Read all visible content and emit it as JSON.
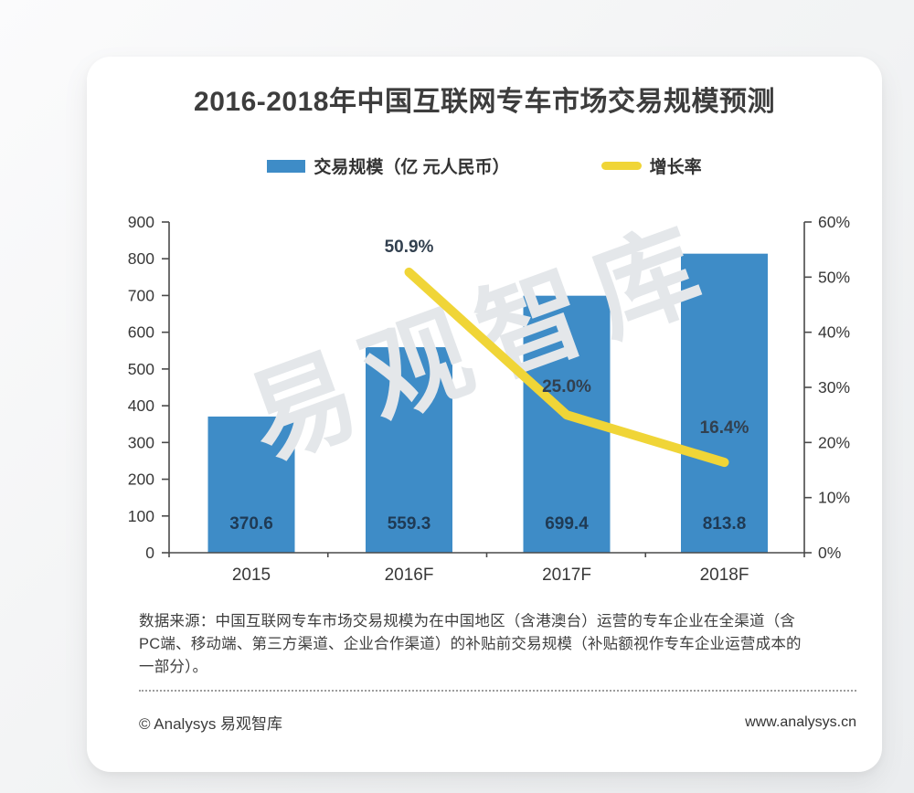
{
  "title": "2016-2018年中国互联网专车市场交易规模预测",
  "legend": {
    "items": [
      {
        "label": "交易规模（亿 元人民币）",
        "swatch": "bar-swatch",
        "color": "#3E8CC7"
      },
      {
        "label": "增长率",
        "swatch": "line-swatch",
        "color": "#F0D537"
      }
    ]
  },
  "chart_data": {
    "type": "bar",
    "subtype": "combo-bar-line",
    "title": "2016-2018年中国互联网专车市场交易规模预测",
    "categories": [
      "2015",
      "2016F",
      "2017F",
      "2018F"
    ],
    "series": [
      {
        "name": "交易规模（亿 元人民币）",
        "type": "bar",
        "axis": "left",
        "color": "#3E8CC7",
        "values": [
          370.6,
          559.3,
          699.4,
          813.8
        ],
        "value_labels": [
          "370.6",
          "559.3",
          "699.4",
          "813.8"
        ],
        "label_color": "#1f3a54"
      },
      {
        "name": "增长率",
        "type": "line",
        "axis": "right",
        "color": "#F0D537",
        "values": [
          null,
          50.9,
          25.0,
          16.4
        ],
        "value_labels": [
          "",
          "50.9%",
          "25.0%",
          "16.4%"
        ],
        "label_color": "#32404f"
      }
    ],
    "left_axis": {
      "min": 0,
      "max": 900,
      "step": 100,
      "tick_labels": [
        "0",
        "100",
        "200",
        "300",
        "400",
        "500",
        "600",
        "700",
        "800",
        "900"
      ]
    },
    "right_axis": {
      "min": 0,
      "max": 60,
      "step": 10,
      "tick_labels": [
        "0%",
        "10%",
        "20%",
        "30%",
        "40%",
        "50%",
        "60%"
      ]
    },
    "grid": false,
    "legend_position": "top",
    "axis_color": "#4a4a4a",
    "tick_label_color": "#383838",
    "watermark": {
      "text": "易观智库",
      "color": "#e4e7ea"
    }
  },
  "footnote": {
    "lines": [
      "数据来源：中国互联网专车市场交易规模为在中国地区（含港澳台）运营的专车企业在全渠道（含",
      "PC端、移动端、第三方渠道、企业合作渠道）的补贴前交易规模（补贴额视作专车企业运营成本的",
      "一部分）。"
    ]
  },
  "footer": {
    "copyright": "© Analysys 易观智库",
    "website": "www.analysys.cn"
  }
}
